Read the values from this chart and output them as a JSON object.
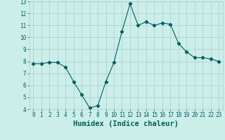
{
  "xlabel": "Humidex (Indice chaleur)",
  "x": [
    0,
    1,
    2,
    3,
    4,
    5,
    6,
    7,
    8,
    9,
    10,
    11,
    12,
    13,
    14,
    15,
    16,
    17,
    18,
    19,
    20,
    21,
    22,
    23
  ],
  "y": [
    7.8,
    7.8,
    7.9,
    7.9,
    7.5,
    6.3,
    5.2,
    4.1,
    4.3,
    6.3,
    7.9,
    10.5,
    12.8,
    11.0,
    11.3,
    11.0,
    11.2,
    11.1,
    9.5,
    8.8,
    8.3,
    8.3,
    8.2,
    8.0
  ],
  "line_color": "#006060",
  "marker": "D",
  "marker_size": 2.2,
  "bg_color": "#cceee8",
  "grid_color": "#aacccc",
  "ylim": [
    4,
    13
  ],
  "xlim": [
    -0.5,
    23.5
  ],
  "yticks": [
    4,
    5,
    6,
    7,
    8,
    9,
    10,
    11,
    12,
    13
  ],
  "xticks": [
    0,
    1,
    2,
    3,
    4,
    5,
    6,
    7,
    8,
    9,
    10,
    11,
    12,
    13,
    14,
    15,
    16,
    17,
    18,
    19,
    20,
    21,
    22,
    23
  ],
  "tick_color": "#006060",
  "label_color": "#006060",
  "tick_fontsize": 5.5,
  "xlabel_fontsize": 7.5
}
